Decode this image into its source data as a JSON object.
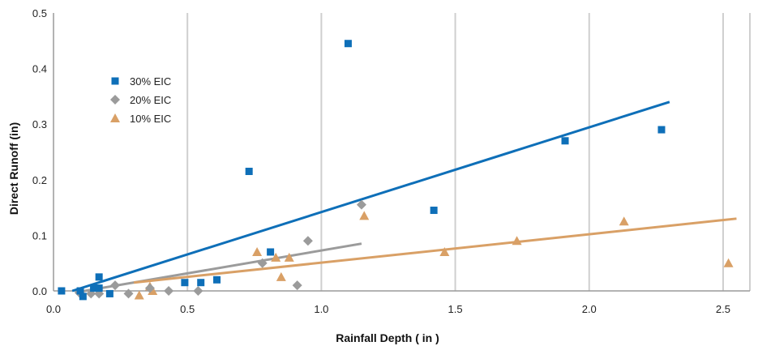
{
  "chart_data": {
    "type": "scatter",
    "xlabel": "Rainfall Depth ( in )",
    "ylabel": "Direct Runoff (in)",
    "xlim": [
      0,
      2.6
    ],
    "ylim": [
      0,
      0.5
    ],
    "x_ticks": [
      "0.0",
      "0.5",
      "1.0",
      "1.5",
      "2.0",
      "2.5"
    ],
    "y_ticks": [
      "0.0",
      "0.1",
      "0.2",
      "0.3",
      "0.4",
      "0.5"
    ],
    "grid": "vertical",
    "legend_position": "upper-left",
    "series": [
      {
        "name": "30% EIC",
        "marker": "square",
        "color": "#0E6FB8",
        "points": [
          [
            0.03,
            0.0
          ],
          [
            0.1,
            0.0
          ],
          [
            0.11,
            -0.01
          ],
          [
            0.15,
            0.005
          ],
          [
            0.17,
            0.025
          ],
          [
            0.17,
            0.005
          ],
          [
            0.21,
            -0.005
          ],
          [
            0.49,
            0.015
          ],
          [
            0.55,
            0.015
          ],
          [
            0.61,
            0.02
          ],
          [
            0.73,
            0.215
          ],
          [
            0.81,
            0.07
          ],
          [
            1.1,
            0.445
          ],
          [
            1.42,
            0.145
          ],
          [
            1.91,
            0.27
          ],
          [
            2.27,
            0.29
          ]
        ],
        "trend": [
          [
            0.07,
            0.0
          ],
          [
            2.3,
            0.34
          ]
        ]
      },
      {
        "name": "20% EIC",
        "marker": "diamond",
        "color": "#9B9B9B",
        "points": [
          [
            0.1,
            -0.005
          ],
          [
            0.14,
            -0.005
          ],
          [
            0.17,
            -0.005
          ],
          [
            0.23,
            0.01
          ],
          [
            0.28,
            -0.005
          ],
          [
            0.36,
            0.005
          ],
          [
            0.43,
            0.0
          ],
          [
            0.54,
            0.0
          ],
          [
            0.78,
            0.05
          ],
          [
            0.91,
            0.01
          ],
          [
            0.95,
            0.09
          ],
          [
            1.15,
            0.155
          ]
        ],
        "trend": [
          [
            0.08,
            -0.003
          ],
          [
            1.15,
            0.085
          ]
        ]
      },
      {
        "name": "10% EIC",
        "marker": "triangle",
        "color": "#D9A066",
        "points": [
          [
            0.32,
            -0.008
          ],
          [
            0.36,
            0.008
          ],
          [
            0.37,
            0.0
          ],
          [
            0.76,
            0.07
          ],
          [
            0.83,
            0.06
          ],
          [
            0.85,
            0.025
          ],
          [
            0.88,
            0.06
          ],
          [
            1.16,
            0.135
          ],
          [
            1.46,
            0.07
          ],
          [
            1.73,
            0.09
          ],
          [
            2.13,
            0.125
          ],
          [
            2.52,
            0.05
          ]
        ],
        "trend": [
          [
            0.3,
            0.015
          ],
          [
            2.55,
            0.13
          ]
        ]
      }
    ]
  }
}
